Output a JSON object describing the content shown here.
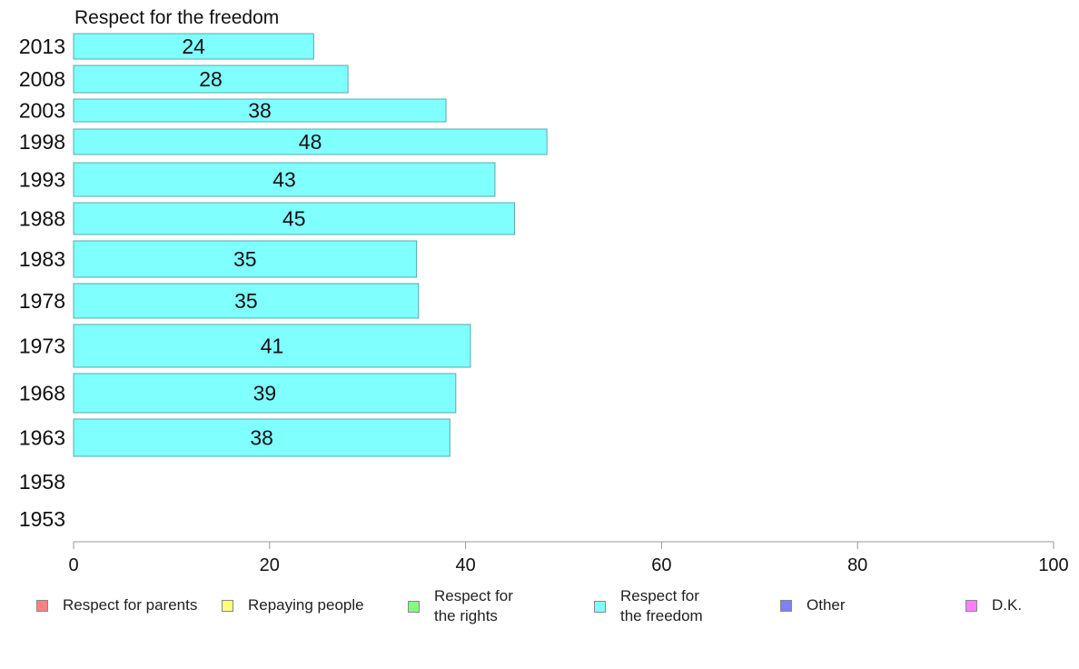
{
  "chart_data": {
    "type": "bar",
    "orientation": "horizontal",
    "title": "Respect for the freedom",
    "categories": [
      "2013",
      "2008",
      "2003",
      "1998",
      "1993",
      "1988",
      "1983",
      "1978",
      "1973",
      "1968",
      "1963",
      "1958",
      "1953"
    ],
    "values": [
      24.5,
      28,
      38,
      48.3,
      43,
      45,
      35,
      35.2,
      40.5,
      39,
      38.4,
      null,
      null
    ],
    "data_labels": [
      "24",
      "28",
      "38",
      "48",
      "43",
      "45",
      "35",
      "35",
      "41",
      "39",
      "38",
      "",
      ""
    ],
    "xlim": [
      0,
      100
    ],
    "xticks": [
      "0",
      "20",
      "40",
      "60",
      "80",
      "100"
    ],
    "bar_color": "#80ffff",
    "grid": false,
    "legend_position": "bottom",
    "legend": [
      {
        "label": "Respect for parents",
        "color": "#ff8080"
      },
      {
        "label": "Repaying people",
        "color": "#ffff80"
      },
      {
        "label": "Respect for\nthe rights",
        "color": "#80ff80"
      },
      {
        "label": "Respect for\nthe freedom",
        "color": "#80ffff"
      },
      {
        "label": "Other",
        "color": "#8080ff"
      },
      {
        "label": "D.K.",
        "color": "#ff80ff"
      }
    ]
  }
}
